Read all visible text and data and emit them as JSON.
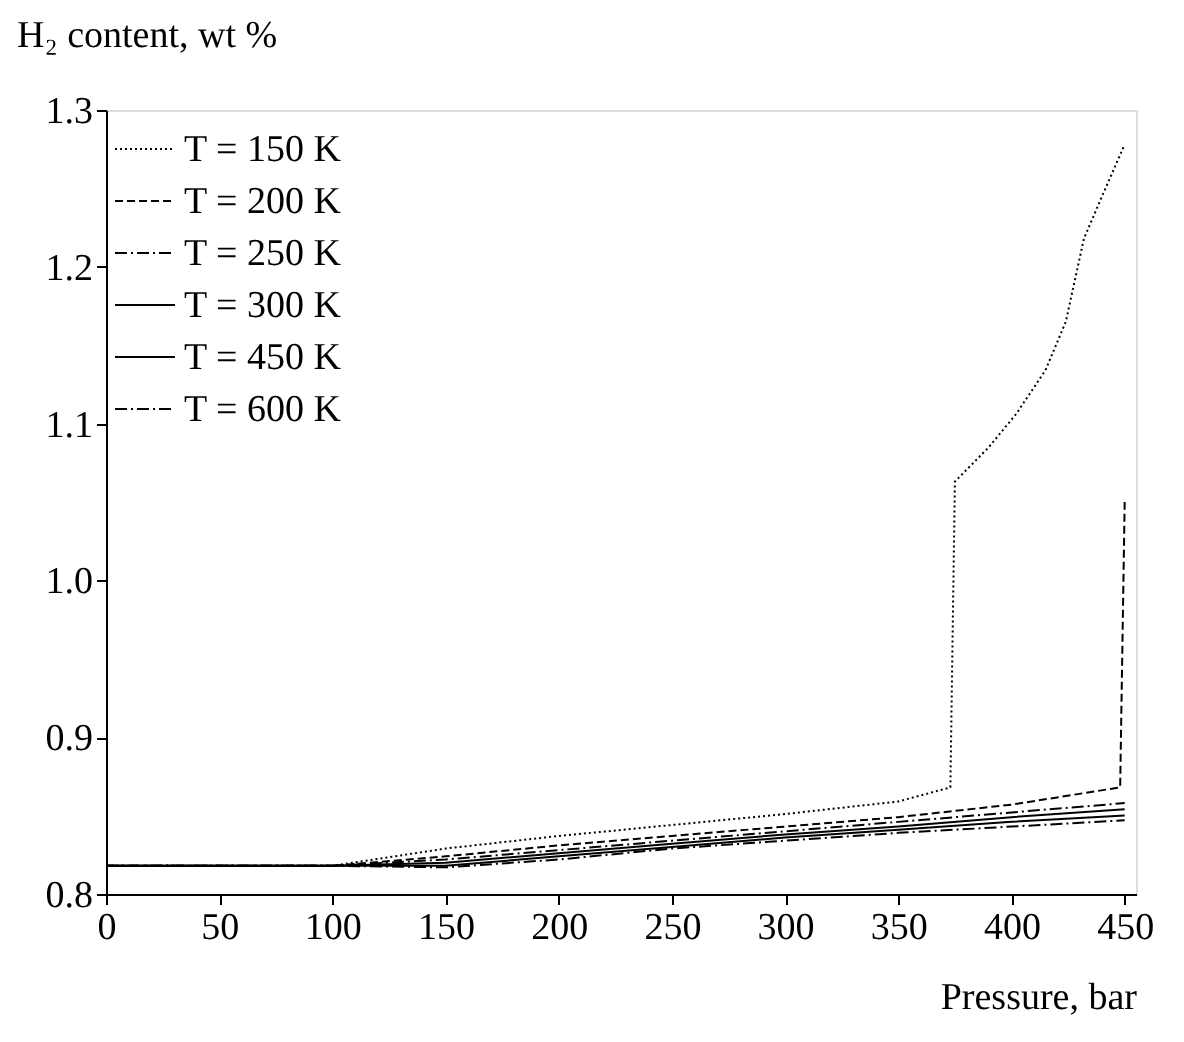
{
  "chart_data": {
    "type": "line",
    "xlabel": "Pressure, bar",
    "ylabel": "H₂ content, wt %",
    "xlim": [
      0,
      455
    ],
    "xticks": [
      0,
      50,
      100,
      150,
      200,
      250,
      300,
      350,
      400,
      450
    ],
    "ylim": [
      0.8,
      1.3
    ],
    "yticks": [
      0.8,
      0.9,
      {
        "value": 1.0,
        "label": "1.0"
      },
      1.1,
      1.2,
      1.3
    ],
    "grid": false,
    "legend": "top left",
    "marker": "none",
    "series": [
      {
        "name": "T = 150 K",
        "color": "#000000",
        "line_style": "dotted",
        "x": [
          0,
          100,
          150,
          200,
          250,
          300,
          350,
          373,
          375,
          390,
          402,
          415,
          424,
          432,
          440,
          450
        ],
        "values": [
          0.818,
          0.818,
          0.829,
          0.837,
          0.844,
          0.851,
          0.859,
          0.868,
          1.063,
          1.085,
          1.106,
          1.134,
          1.165,
          1.218,
          1.245,
          1.278
        ]
      },
      {
        "name": "T = 200 K",
        "color": "#000000",
        "line_style": "dashed",
        "x": [
          0,
          100,
          150,
          200,
          250,
          300,
          350,
          400,
          448,
          450
        ],
        "values": [
          0.818,
          0.818,
          0.824,
          0.831,
          0.837,
          0.843,
          0.849,
          0.857,
          0.868,
          1.05
        ]
      },
      {
        "name": "T = 250 K",
        "color": "#000000",
        "line_style": "dashdot",
        "x": [
          0,
          100,
          150,
          200,
          250,
          300,
          350,
          400,
          450
        ],
        "values": [
          0.818,
          0.818,
          0.822,
          0.828,
          0.834,
          0.84,
          0.846,
          0.852,
          0.858
        ]
      },
      {
        "name": "T = 300 K",
        "color": "#000000",
        "line_style": "solid",
        "x": [
          0,
          100,
          150,
          200,
          250,
          300,
          350,
          400,
          450
        ],
        "values": [
          0.818,
          0.818,
          0.82,
          0.826,
          0.832,
          0.838,
          0.843,
          0.849,
          0.854
        ]
      },
      {
        "name": "T = 450 K",
        "color": "#000000",
        "line_style": "solid",
        "x": [
          0,
          100,
          150,
          200,
          250,
          300,
          350,
          400,
          450
        ],
        "values": [
          0.818,
          0.818,
          0.818,
          0.824,
          0.83,
          0.836,
          0.841,
          0.846,
          0.85
        ]
      },
      {
        "name": "T = 600 K",
        "color": "#000000",
        "line_style": "dashdot",
        "x": [
          0,
          100,
          150,
          200,
          250,
          300,
          350,
          400,
          450
        ],
        "values": [
          0.818,
          0.818,
          0.817,
          0.822,
          0.829,
          0.834,
          0.839,
          0.843,
          0.847
        ]
      }
    ]
  }
}
